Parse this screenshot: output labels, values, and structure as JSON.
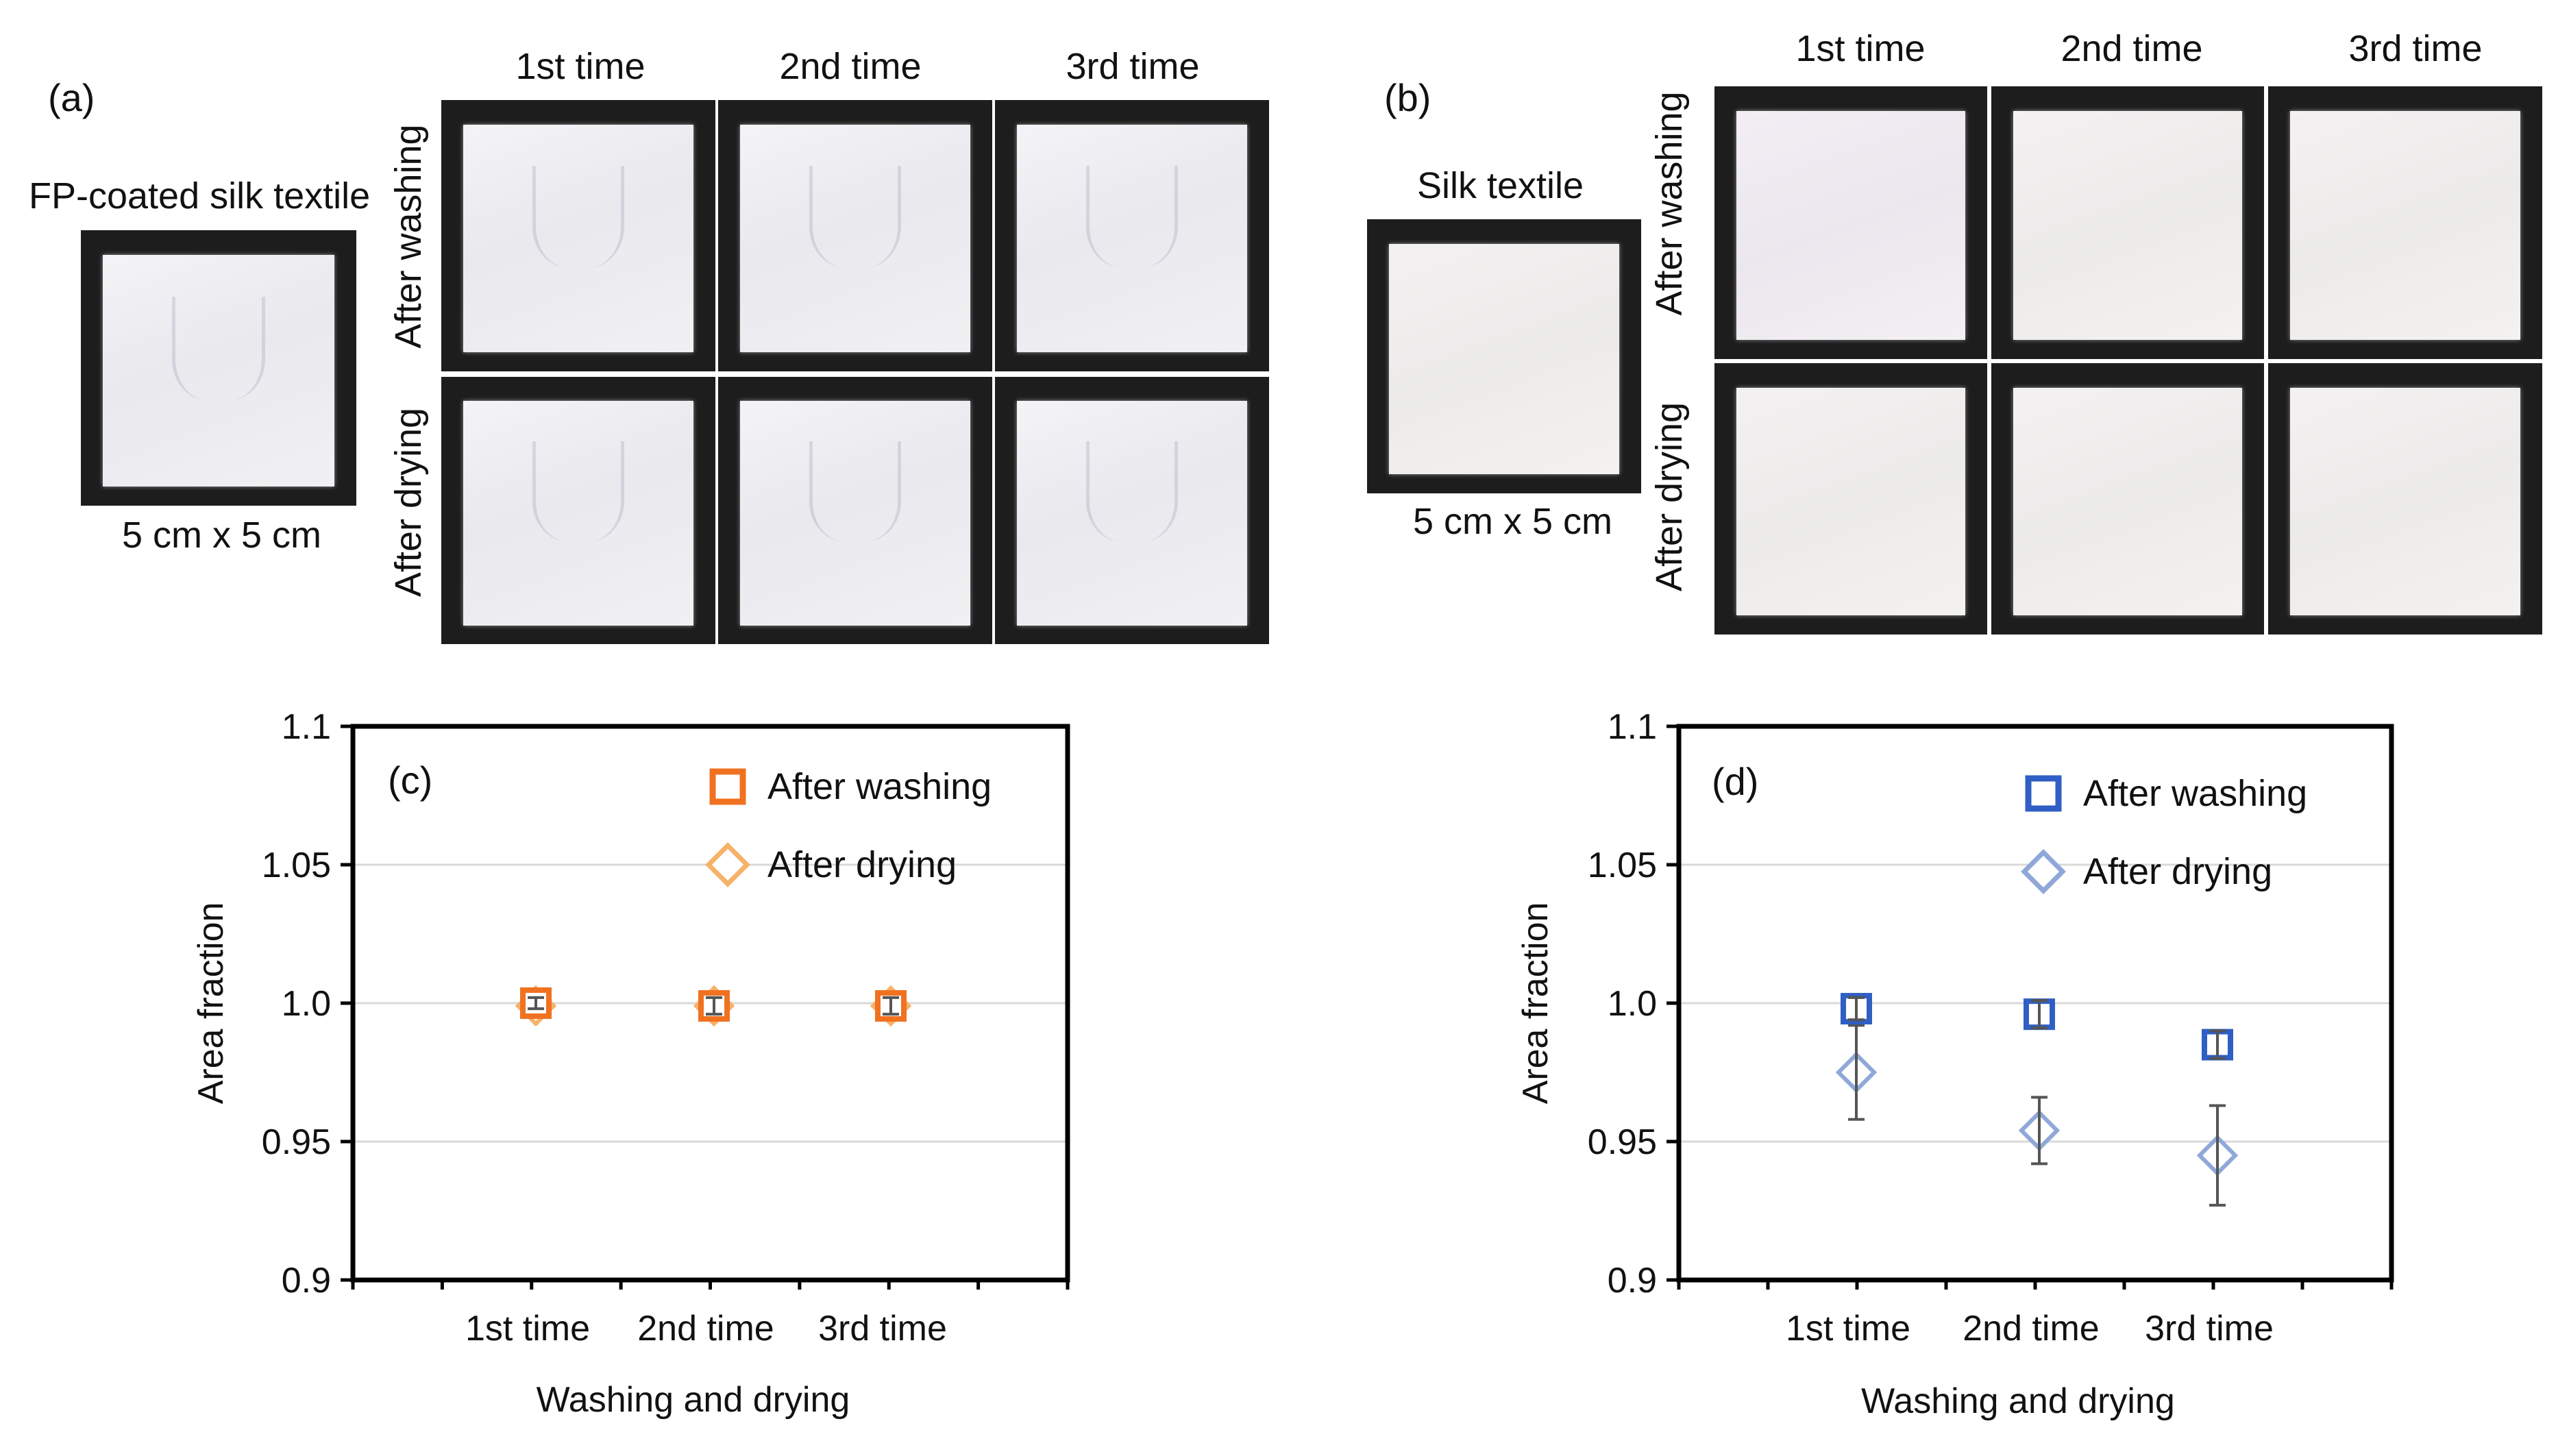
{
  "panel_a": {
    "label": "(a)",
    "sample_title": "FP-coated silk textile",
    "size_caption": "5 cm x 5 cm",
    "columns": [
      "1st time",
      "2nd time",
      "3rd time"
    ],
    "rows": [
      "After washing",
      "After drying"
    ]
  },
  "panel_b": {
    "label": "(b)",
    "sample_title": "Silk textile",
    "size_caption": "5 cm x 5 cm",
    "columns": [
      "1st time",
      "2nd time",
      "3rd time"
    ],
    "rows": [
      "After washing",
      "After drying"
    ]
  },
  "colors": {
    "c_washing": "#F07221",
    "c_drying": "#F7B26A",
    "d_washing": "#2F5FC4",
    "d_drying": "#8FA8D8",
    "error_bar": "#555555",
    "grid": "#d9d9d9"
  },
  "chart_data": [
    {
      "type": "scatter",
      "panel_label": "(c)",
      "categories": [
        "1st time",
        "2nd time",
        "3rd time"
      ],
      "xlabel": "Washing and drying",
      "ylabel": "Area fraction",
      "ylim": [
        0.9,
        1.1
      ],
      "yticks": [
        "0.9",
        "0.95",
        "1.0",
        "1.05",
        "1.1"
      ],
      "grid": true,
      "legend_position": "top-right",
      "series": [
        {
          "name": "After washing",
          "marker": "square",
          "values": [
            1.0,
            0.999,
            0.999
          ],
          "errors": [
            0.002,
            0.003,
            0.003
          ]
        },
        {
          "name": "After drying",
          "marker": "diamond",
          "values": [
            0.999,
            0.999,
            0.999
          ],
          "errors": [
            0.002,
            0.002,
            0.002
          ]
        }
      ]
    },
    {
      "type": "scatter",
      "panel_label": "(d)",
      "categories": [
        "1st time",
        "2nd time",
        "3rd time"
      ],
      "xlabel": "Washing and drying",
      "ylabel": "Area fraction",
      "ylim": [
        0.9,
        1.1
      ],
      "yticks": [
        "0.9",
        "0.95",
        "1.0",
        "1.05",
        "1.1"
      ],
      "grid": true,
      "legend_position": "top-right",
      "series": [
        {
          "name": "After washing",
          "marker": "square",
          "values": [
            0.998,
            0.996,
            0.985
          ],
          "errors": [
            0.004,
            0.005,
            0.005
          ]
        },
        {
          "name": "After drying",
          "marker": "diamond",
          "values": [
            0.975,
            0.954,
            0.945
          ],
          "errors": [
            0.017,
            0.012,
            0.018
          ]
        }
      ]
    }
  ]
}
